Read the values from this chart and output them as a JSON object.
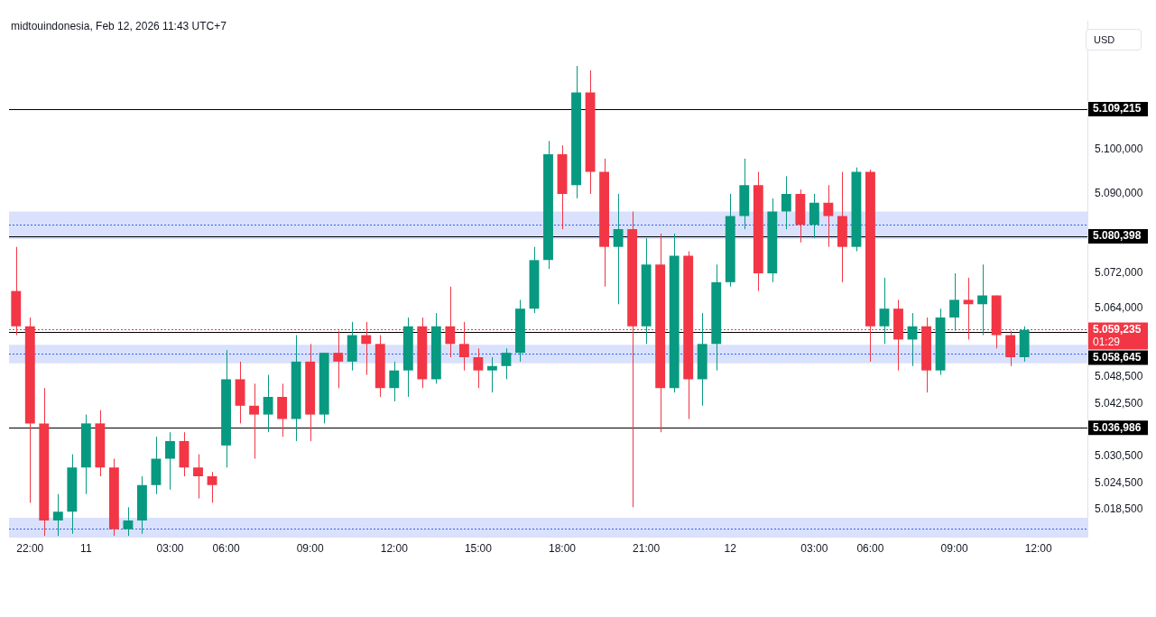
{
  "chart_data": {
    "type": "candlestick",
    "categories": [
      null,
      "22:00",
      null,
      null,
      null,
      "11",
      null,
      null,
      null,
      null,
      null,
      "03:00",
      null,
      null,
      null,
      "06:00",
      null,
      null,
      null,
      null,
      null,
      "09:00",
      null,
      null,
      null,
      null,
      null,
      "12:00",
      null,
      null,
      null,
      null,
      null,
      "15:00",
      null,
      null,
      null,
      null,
      null,
      "18:00",
      null,
      null,
      null,
      null,
      null,
      "21:00",
      null,
      null,
      null,
      null,
      null,
      "12",
      null,
      null,
      null,
      null,
      null,
      "03:00",
      null,
      null,
      null,
      "06:00",
      null,
      null,
      null,
      null,
      null,
      "09:00",
      null,
      null,
      null,
      null,
      null,
      "12:00",
      null,
      null,
      null
    ],
    "ohlc": [
      [
        5068,
        5078,
        5058,
        5060
      ],
      [
        5060,
        5062,
        5020,
        5038
      ],
      [
        5038,
        5046,
        5012.5,
        5016
      ],
      [
        5016,
        5022,
        5012.5,
        5018
      ],
      [
        5018,
        5031,
        5013,
        5028
      ],
      [
        5028,
        5040,
        5022,
        5038
      ],
      [
        5038,
        5041,
        5026,
        5028
      ],
      [
        5028,
        5030,
        5012.5,
        5014
      ],
      [
        5014,
        5019,
        5012.5,
        5016
      ],
      [
        5016,
        5026,
        5013,
        5024
      ],
      [
        5024,
        5035,
        5022,
        5030
      ],
      [
        5030,
        5036,
        5023,
        5034
      ],
      [
        5034,
        5036,
        5026,
        5028
      ],
      [
        5028,
        5031,
        5021,
        5026
      ],
      [
        5026,
        5027,
        5020,
        5024
      ],
      [
        5033,
        5054.6,
        5028,
        5048
      ],
      [
        5048,
        5052,
        5038,
        5042
      ],
      [
        5042,
        5047,
        5030,
        5040
      ],
      [
        5040,
        5049,
        5036,
        5044
      ],
      [
        5044,
        5047,
        5035,
        5039
      ],
      [
        5039,
        5058,
        5034,
        5052
      ],
      [
        5052,
        5056,
        5034,
        5040
      ],
      [
        5040,
        5054,
        5038,
        5054
      ],
      [
        5054,
        5059,
        5046,
        5052
      ],
      [
        5052,
        5061,
        5050,
        5058
      ],
      [
        5058,
        5061,
        5049,
        5056
      ],
      [
        5056,
        5058,
        5044,
        5046
      ],
      [
        5046,
        5052,
        5043,
        5050
      ],
      [
        5050,
        5062,
        5044,
        5060
      ],
      [
        5060,
        5062,
        5046,
        5048
      ],
      [
        5048,
        5063,
        5047,
        5060
      ],
      [
        5060,
        5069,
        5053,
        5056
      ],
      [
        5056,
        5061,
        5050,
        5053
      ],
      [
        5053,
        5055,
        5046,
        5050
      ],
      [
        5050,
        5053,
        5045,
        5051
      ],
      [
        5051,
        5055,
        5048,
        5054
      ],
      [
        5054,
        5066,
        5052,
        5064
      ],
      [
        5064,
        5078,
        5063,
        5075
      ],
      [
        5075,
        5102,
        5073,
        5099
      ],
      [
        5099,
        5101,
        5082,
        5090
      ],
      [
        5092,
        5119,
        5089,
        5113
      ],
      [
        5113,
        5118,
        5090,
        5095
      ],
      [
        5095,
        5098,
        5069,
        5078
      ],
      [
        5078,
        5090,
        5065,
        5082
      ],
      [
        5082,
        5086,
        5019,
        5060
      ],
      [
        5060,
        5080,
        5056,
        5074
      ],
      [
        5074,
        5081,
        5036,
        5046
      ],
      [
        5046,
        5081,
        5045,
        5076
      ],
      [
        5076,
        5077,
        5039,
        5048
      ],
      [
        5048,
        5063,
        5042,
        5056
      ],
      [
        5056,
        5074,
        5050,
        5070
      ],
      [
        5070,
        5090,
        5069,
        5085
      ],
      [
        5085,
        5098,
        5082,
        5092
      ],
      [
        5092,
        5095,
        5068,
        5072
      ],
      [
        5072,
        5089,
        5070,
        5086
      ],
      [
        5086,
        5094,
        5082,
        5090
      ],
      [
        5090,
        5091,
        5079,
        5083
      ],
      [
        5083,
        5090,
        5080,
        5088
      ],
      [
        5088,
        5092,
        5078,
        5085
      ],
      [
        5085,
        5095,
        5070,
        5078
      ],
      [
        5078,
        5096,
        5077,
        5095
      ],
      [
        5095,
        5095.5,
        5052,
        5060
      ],
      [
        5060,
        5071,
        5056,
        5064
      ],
      [
        5064,
        5066,
        5050,
        5057
      ],
      [
        5057,
        5063,
        5051,
        5060
      ],
      [
        5060,
        5062,
        5045,
        5050
      ],
      [
        5050,
        5064,
        5049,
        5062
      ],
      [
        5062,
        5072,
        5059,
        5066
      ],
      [
        5066,
        5071,
        5057,
        5065
      ],
      [
        5065,
        5074,
        5058,
        5067
      ],
      [
        5067,
        5067,
        5055,
        5058
      ],
      [
        5058,
        5059,
        5051,
        5053
      ],
      [
        5053,
        5060,
        5052,
        5059.2
      ],
      null,
      null,
      null,
      null
    ],
    "colors": [
      "#f23645",
      "#f23645",
      "#f23645",
      "#089981",
      "#089981",
      "#089981",
      "#f23645",
      "#f23645",
      "#089981",
      "#089981",
      "#089981",
      "#089981",
      "#f23645",
      "#f23645",
      "#f23645",
      "#089981",
      "#f23645",
      "#f23645",
      "#089981",
      "#f23645",
      "#089981",
      "#f23645",
      "#089981",
      "#f23645",
      "#089981",
      "#f23645",
      "#f23645",
      "#089981",
      "#089981",
      "#f23645",
      "#089981",
      "#f23645",
      "#f23645",
      "#f23645",
      "#089981",
      "#089981",
      "#089981",
      "#089981",
      "#089981",
      "#f23645",
      "#089981",
      "#f23645",
      "#f23645",
      "#089981",
      "#f23645",
      "#089981",
      "#f23645",
      "#089981",
      "#f23645",
      "#089981",
      "#089981",
      "#089981",
      "#089981",
      "#f23645",
      "#089981",
      "#089981",
      "#f23645",
      "#089981",
      "#f23645",
      "#f23645",
      "#089981",
      "#f23645",
      "#089981",
      "#f23645",
      "#089981",
      "#f23645",
      "#089981",
      "#089981",
      "#f23645",
      "#089981",
      "#f23645",
      "#f23645",
      "#089981",
      null,
      null,
      null,
      null
    ],
    "ylim": [
      5012.2,
      5129.2
    ],
    "yticks": [
      {
        "value": 5100,
        "label": "5.100,000"
      },
      {
        "value": 5090,
        "label": "5.090,000"
      },
      {
        "value": 5072,
        "label": "5.072,000"
      },
      {
        "value": 5064,
        "label": "5.064,000"
      },
      {
        "value": 5048.5,
        "label": "5.048,500"
      },
      {
        "value": 5042.5,
        "label": "5.042,500"
      },
      {
        "value": 5030.5,
        "label": "5.030,500"
      },
      {
        "value": 5024.5,
        "label": "5.024,500"
      },
      {
        "value": 5018.5,
        "label": "5.018,500"
      }
    ],
    "ref_lines": [
      {
        "axis": "y",
        "value": 5109.215,
        "label": "5.109,215",
        "color": "#000000",
        "line_style": "solid"
      },
      {
        "axis": "y",
        "value": 5080.398,
        "label": "5.080,398",
        "color": "#000000",
        "line_style": "solid"
      },
      {
        "axis": "y",
        "value": 5059.235,
        "label": "5.059,235\n01:29",
        "color": "#f23645",
        "line_style": "dotted"
      },
      {
        "axis": "y",
        "value": 5058.645,
        "label": "5.058,645",
        "color": "#000000",
        "line_style": "solid"
      },
      {
        "axis": "y",
        "value": 5036.986,
        "label": "5.036,986",
        "color": "#000000",
        "line_style": "solid"
      },
      {
        "axis": "y",
        "value": 5083,
        "color": "#2962ff",
        "line_style": "dotted"
      },
      {
        "axis": "y",
        "value": 5053.8,
        "color": "#2962ff",
        "line_style": "dotted"
      },
      {
        "axis": "y",
        "value": 5014.2,
        "color": "#2962ff",
        "line_style": "dotted"
      }
    ],
    "bands": [
      {
        "axis": "y",
        "from": 5079.8,
        "to": 5086,
        "color": "#d9e1fc"
      },
      {
        "axis": "y",
        "from": 5051.6,
        "to": 5055.8,
        "color": "#d9e1fc"
      },
      {
        "axis": "y",
        "from": 5012.2,
        "to": 5016.6,
        "color": "#d9e1fc"
      }
    ],
    "annotations": [
      "midtouindonesia, Feb 12, 2026 11:43 UTC+7",
      "USD"
    ],
    "legend": false
  }
}
